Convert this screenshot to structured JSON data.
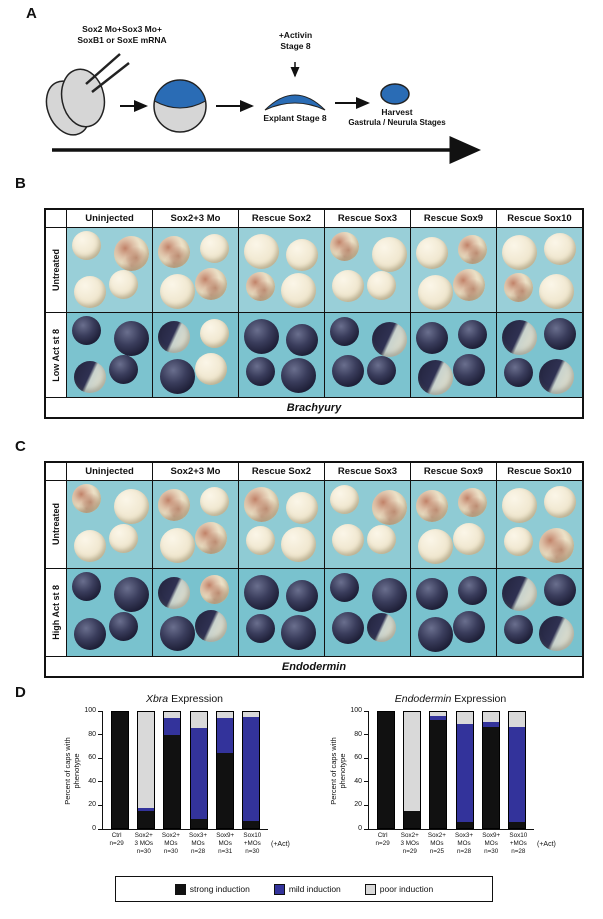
{
  "panels": {
    "a": "A",
    "b": "B",
    "c": "C",
    "d": "D"
  },
  "schematic": {
    "injection_line1": "Sox2 Mo+Sox3 Mo+",
    "injection_line2": "SoxB1 or SoxE mRNA",
    "activin_line1": "+Activin",
    "activin_line2": "Stage 8",
    "explant_label": "Explant Stage 8",
    "harvest_line1": "Harvest",
    "harvest_line2": "Gastrula / Neurula Stages",
    "cap_color": "#2a6cb5",
    "embryo_gray": "#d6d6d6"
  },
  "panelB": {
    "columns": [
      "Uninjected",
      "Sox2+3 Mo",
      "Rescue Sox2",
      "Rescue Sox3",
      "Rescue Sox9",
      "Rescue Sox10"
    ],
    "row_labels": [
      "Untreated",
      "Low Act st 8"
    ],
    "caption": "Brachyury",
    "row_backgrounds": [
      "#99cfd8",
      "#7cc3cf"
    ],
    "cells": [
      [
        [
          "pale",
          "rust",
          "pale",
          "pale"
        ],
        [
          "rust",
          "pale",
          "pale",
          "rust"
        ],
        [
          "pale",
          "pale",
          "rust",
          "pale"
        ],
        [
          "rust",
          "pale",
          "pale",
          "pale"
        ],
        [
          "pale",
          "rust",
          "pale",
          "rust"
        ],
        [
          "pale",
          "pale",
          "rust",
          "pale"
        ]
      ],
      [
        [
          "dark",
          "dark",
          "mix",
          "dark"
        ],
        [
          "mix",
          "pale",
          "dark",
          "pale"
        ],
        [
          "dark",
          "dark",
          "dark",
          "dark"
        ],
        [
          "dark",
          "mix",
          "dark",
          "dark"
        ],
        [
          "dark",
          "dark",
          "mix",
          "dark"
        ],
        [
          "mix",
          "dark",
          "dark",
          "mix"
        ]
      ]
    ]
  },
  "panelC": {
    "columns": [
      "Uninjected",
      "Sox2+3 Mo",
      "Rescue Sox2",
      "Rescue Sox3",
      "Rescue Sox9",
      "Rescue Sox10"
    ],
    "row_labels": [
      "Untreated",
      "High Act st 8"
    ],
    "caption": "Endodermin",
    "row_backgrounds": [
      "#8fcbd4",
      "#79c2ce"
    ],
    "cells": [
      [
        [
          "rust",
          "pale",
          "pale",
          "pale"
        ],
        [
          "rust",
          "pale",
          "pale",
          "rust"
        ],
        [
          "rust",
          "pale",
          "pale",
          "pale"
        ],
        [
          "pale",
          "rust",
          "pale",
          "pale"
        ],
        [
          "rust",
          "rust",
          "pale",
          "pale"
        ],
        [
          "pale",
          "pale",
          "pale",
          "rust"
        ]
      ],
      [
        [
          "dark",
          "dark",
          "dark",
          "dark"
        ],
        [
          "mix",
          "rust",
          "dark",
          "mix"
        ],
        [
          "dark",
          "dark",
          "dark",
          "dark"
        ],
        [
          "dark",
          "dark",
          "dark",
          "mix"
        ],
        [
          "dark",
          "dark",
          "dark",
          "dark"
        ],
        [
          "mix",
          "dark",
          "dark",
          "mix"
        ]
      ]
    ]
  },
  "chart_axis": {
    "ylabel_line1": "Percent of caps with",
    "ylabel_line2": "phenotype",
    "act_label": "(+Act)",
    "yticks": [
      0,
      20,
      40,
      60,
      80,
      100
    ]
  },
  "chart_data": [
    {
      "type": "stacked-bar",
      "title_italic": "Xbra",
      "title_rest": " Expression",
      "ylim": [
        0,
        100
      ],
      "categories": [
        [
          "Ctrl"
        ],
        [
          "Sox2+",
          "3 MOs"
        ],
        [
          "Sox2+",
          "MOs"
        ],
        [
          "Sox3+",
          "MOs"
        ],
        [
          "Sox9+",
          "MOs"
        ],
        [
          "Sox10",
          "+MOs"
        ]
      ],
      "n_values": [
        "n=29",
        "n=30",
        "n=30",
        "n=28",
        "n=31",
        "n=30"
      ],
      "series": [
        {
          "name": "strong induction",
          "color": "#111111",
          "values": [
            100,
            15,
            80,
            8,
            65,
            6
          ]
        },
        {
          "name": "mild induction",
          "color": "#33339b",
          "values": [
            0,
            2,
            15,
            78,
            30,
            90
          ]
        },
        {
          "name": "poor induction",
          "color": "#d9d9d9",
          "values": [
            0,
            83,
            5,
            14,
            5,
            4
          ]
        }
      ]
    },
    {
      "type": "stacked-bar",
      "title_italic": "Endodermin",
      "title_rest": " Expression",
      "ylim": [
        0,
        100
      ],
      "categories": [
        [
          "Ctrl"
        ],
        [
          "Sox2+",
          "3 MOs"
        ],
        [
          "Sox2+",
          "MOs"
        ],
        [
          "Sox3+",
          "MOs"
        ],
        [
          "Sox9+",
          "MOs"
        ],
        [
          "Sox10",
          "+MOs"
        ]
      ],
      "n_values": [
        "n=29",
        "n=29",
        "n=25",
        "n=28",
        "n=30",
        "n=28"
      ],
      "series": [
        {
          "name": "strong induction",
          "color": "#111111",
          "values": [
            100,
            15,
            93,
            5,
            87,
            5
          ]
        },
        {
          "name": "mild induction",
          "color": "#33339b",
          "values": [
            0,
            0,
            4,
            85,
            4,
            82
          ]
        },
        {
          "name": "poor induction",
          "color": "#d9d9d9",
          "values": [
            0,
            85,
            3,
            10,
            9,
            13
          ]
        }
      ]
    }
  ],
  "legend": [
    {
      "label": "strong induction",
      "color": "#111111"
    },
    {
      "label": "mild induction",
      "color": "#33339b"
    },
    {
      "label": "poor induction",
      "color": "#d9d9d9"
    }
  ]
}
